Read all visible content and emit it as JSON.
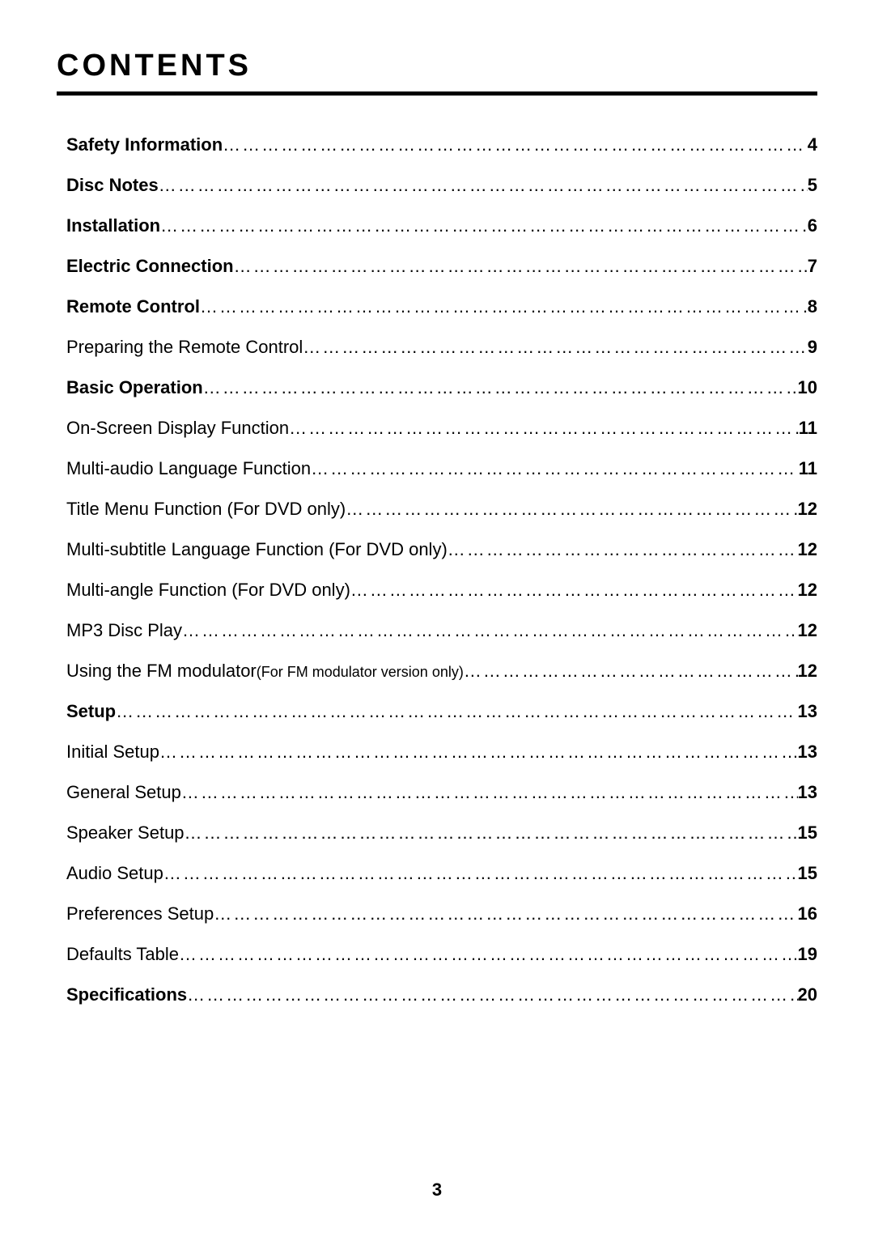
{
  "page": {
    "title": "CONTENTS",
    "page_number": "3",
    "background_color": "#ffffff",
    "text_color": "#000000",
    "title_fontsize": 38,
    "entry_fontsize": 22,
    "subnote_fontsize": 18,
    "underline_thickness": 5
  },
  "toc": [
    {
      "title": "Safety Information",
      "page": "4",
      "bold": true
    },
    {
      "title": "Disc Notes",
      "page": "5",
      "bold": true
    },
    {
      "title": "Installation",
      "page": "6",
      "bold": true
    },
    {
      "title": "Electric Connection",
      "page": "7",
      "bold": true
    },
    {
      "title": "Remote Control",
      "page": "8",
      "bold": true
    },
    {
      "title": "Preparing the Remote Control",
      "page": "9",
      "bold": false
    },
    {
      "title": "Basic Operation",
      "page": "10",
      "bold": true
    },
    {
      "title": "On-Screen Display Function",
      "page": "11",
      "bold": false
    },
    {
      "title": "Multi-audio Language Function",
      "page": "11",
      "bold": false
    },
    {
      "title": "Title Menu Function (For DVD only)",
      "page": "12",
      "bold": false
    },
    {
      "title": "Multi-subtitle Language Function (For DVD only)",
      "page": "12",
      "bold": false
    },
    {
      "title": "Multi-angle Function (For DVD only)",
      "page": "12",
      "bold": false
    },
    {
      "title": "MP3 Disc Play",
      "page": "12",
      "bold": false
    },
    {
      "title": "Using the FM modulator",
      "sub": "(For FM modulator version only)",
      "page": "12",
      "bold": false
    },
    {
      "title": "Setup",
      "page": "13",
      "bold": true
    },
    {
      "title": "Initial Setup",
      "page": "13",
      "bold": false
    },
    {
      "title": "General Setup",
      "page": "13",
      "bold": false
    },
    {
      "title": "Speaker Setup",
      "page": "15",
      "bold": false
    },
    {
      "title": "Audio Setup",
      "page": "15",
      "bold": false
    },
    {
      "title": "Preferences Setup",
      "page": "16",
      "bold": false
    },
    {
      "title": "Defaults Table",
      "page": "19",
      "bold": false
    },
    {
      "title": "Specifications",
      "page": "20",
      "bold": true
    }
  ]
}
